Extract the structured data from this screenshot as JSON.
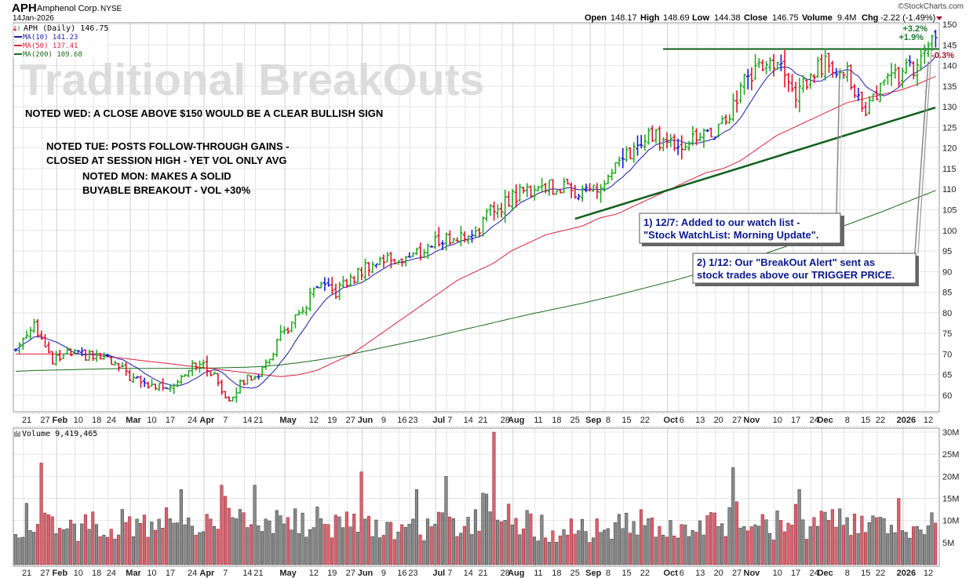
{
  "header": {
    "symbol": "APH",
    "company": "Amphenol Corp.",
    "exchange": "NYSE",
    "date": "14Jan-2026",
    "brand": "©StockCharts.com",
    "open_label": "Open",
    "open": "148.17",
    "high_label": "High",
    "high": "148.69",
    "low_label": "Low",
    "low": "144.38",
    "close_label": "Close",
    "close": "146.75",
    "volume_label": "Volume",
    "volume": "9.4M",
    "chg_label": "Chg",
    "chg": "-2.22 (-1.49%)"
  },
  "legend": {
    "price": "APH (Daily) 146.75",
    "ma10": "MA(10) 141.23",
    "ma50": "MA(50) 137.41",
    "ma200": "MA(200) 109.68",
    "volume": "Volume 9,419,465"
  },
  "watermark": "Traditional BreakOuts",
  "notes": {
    "wed": "NOTED WED: A CLOSE ABOVE $150 WOULD BE A CLEAR BULLISH SIGN",
    "tue_1": "NOTED TUE: POSTS FOLLOW-THROUGH GAINS -",
    "tue_2": "CLOSED AT SESSION HIGH - YET VOL ONLY AVG",
    "mon_1": "NOTED MON: MAKES A SOLID",
    "mon_2": "BUYABLE BREAKOUT - VOL +30%"
  },
  "annotations": {
    "a1_line1": "1) 12/7: Added to our watch list -",
    "a1_line2": "\"Stock WatchList: Morning Update\".",
    "a2_line1": "2) 1/12: Our \"BreakOut Alert\" sent as",
    "a2_line2": "stock trades above our TRIGGER PRICE.",
    "pct_1": "+3.2%",
    "pct_2": "+1.9%",
    "pct_3": "-0.3%"
  },
  "colors": {
    "up": "#22aa22",
    "down": "#e0102e",
    "neutral": "#1a1adf",
    "ma10": "#1c1ca8",
    "ma50": "#d8213a",
    "ma200": "#1b6b1b",
    "trend": "#0f5f1a",
    "vol_up": "#8a8a8a",
    "vol_down": "#d9636f"
  },
  "chart_data": {
    "type": "line",
    "title": "APH Amphenol Corp. NYSE (Daily)",
    "total_days": 251,
    "ylim": [
      56,
      151
    ],
    "y_ticks": [
      60,
      65,
      70,
      75,
      80,
      85,
      90,
      95,
      100,
      105,
      110,
      115,
      120,
      125,
      130,
      135,
      140,
      145,
      150
    ],
    "weekly_close": [
      71,
      78,
      68,
      70,
      69.5,
      69,
      66,
      63,
      62,
      63,
      68,
      66,
      59,
      64,
      66,
      75,
      79,
      86,
      85,
      88,
      92,
      93,
      93,
      95,
      98,
      98,
      100,
      105,
      108,
      110,
      111,
      110,
      110,
      110,
      115,
      120,
      123,
      121,
      122,
      123,
      125,
      135,
      140,
      141,
      132,
      138,
      141,
      139,
      127,
      137,
      138,
      139,
      146.75
    ],
    "ma50_weekly": [
      70,
      70,
      70,
      70,
      70,
      69.5,
      69,
      68.5,
      68,
      67.5,
      67,
      66.5,
      66,
      65.5,
      65,
      64.5,
      65,
      66,
      68,
      70,
      73,
      76,
      79,
      82,
      85,
      88,
      90,
      92,
      95,
      97,
      99,
      100,
      101,
      103,
      104,
      106,
      108,
      110,
      112,
      114,
      115,
      117,
      120,
      123,
      125,
      127,
      129,
      131,
      132,
      133,
      134,
      135.5,
      137.41
    ],
    "ma200_weekly": [
      65.8,
      66,
      66.1,
      66.2,
      66.3,
      66.4,
      66.5,
      66.5,
      66.5,
      66.5,
      66.5,
      66.6,
      66.7,
      66.8,
      67,
      67.4,
      67.9,
      68.5,
      69.2,
      70,
      70.9,
      71.8,
      72.7,
      73.6,
      74.6,
      75.6,
      76.6,
      77.6,
      78.6,
      79.6,
      80.5,
      81.4,
      82.3,
      83.3,
      84.3,
      85.4,
      86.5,
      87.6,
      88.8,
      90,
      91.3,
      92.6,
      93.9,
      95.3,
      96.8,
      98.3,
      99.8,
      101.4,
      103,
      104.6,
      106.3,
      108,
      109.68
    ],
    "vol_ylim": [
      0,
      31
    ],
    "vol_ticks": [
      {
        "v": 5,
        "label": "5M"
      },
      {
        "v": 10,
        "label": "10M"
      },
      {
        "v": 15,
        "label": "15M"
      },
      {
        "v": 20,
        "label": "20M"
      },
      {
        "v": 25,
        "label": "25M"
      },
      {
        "v": 30,
        "label": "30M"
      }
    ],
    "vol_weekly_avg_m": [
      9,
      11,
      8,
      8,
      9,
      8,
      9,
      10,
      9,
      10,
      11,
      9,
      13,
      10,
      9,
      10,
      9,
      10,
      8,
      9,
      8,
      8,
      9,
      8,
      9,
      8,
      10,
      14,
      10,
      9,
      8,
      8,
      8,
      8,
      9,
      9,
      10,
      9,
      9,
      8,
      10,
      11,
      10,
      9,
      10,
      9,
      9,
      10,
      11,
      9,
      8,
      9,
      10
    ],
    "vol_spikes": [
      {
        "day": 7,
        "v": 23
      },
      {
        "day": 45,
        "v": 17
      },
      {
        "day": 56,
        "v": 18
      },
      {
        "day": 65,
        "v": 18
      },
      {
        "day": 94,
        "v": 21
      },
      {
        "day": 109,
        "v": 17
      },
      {
        "day": 117,
        "v": 20
      },
      {
        "day": 130,
        "v": 30
      },
      {
        "day": 195,
        "v": 22
      },
      {
        "day": 213,
        "v": 17
      },
      {
        "day": 240,
        "v": 15
      }
    ],
    "resistance": {
      "value": 144,
      "from_day": 177
    },
    "trendline": {
      "from_day": 152,
      "from_value": 102.8,
      "to_day": 250,
      "to_value": 129.8
    },
    "x_ticks": [
      {
        "label": "21",
        "day": 3
      },
      {
        "label": "27",
        "day": 8
      },
      {
        "label": "Feb",
        "day": 12,
        "bold": true
      },
      {
        "label": "10",
        "day": 17
      },
      {
        "label": "18",
        "day": 22
      },
      {
        "label": "24",
        "day": 26
      },
      {
        "label": "Mar",
        "day": 32,
        "bold": true
      },
      {
        "label": "10",
        "day": 37
      },
      {
        "label": "17",
        "day": 42
      },
      {
        "label": "24",
        "day": 48
      },
      {
        "label": "Apr",
        "day": 52,
        "bold": true
      },
      {
        "label": "7",
        "day": 57
      },
      {
        "label": "14",
        "day": 63
      },
      {
        "label": "21",
        "day": 66
      },
      {
        "label": "May",
        "day": 74,
        "bold": true
      },
      {
        "label": "12",
        "day": 81
      },
      {
        "label": "19",
        "day": 86
      },
      {
        "label": "27",
        "day": 91
      },
      {
        "label": "Jun",
        "day": 95,
        "bold": true
      },
      {
        "label": "9",
        "day": 100
      },
      {
        "label": "16",
        "day": 105
      },
      {
        "label": "23",
        "day": 108
      },
      {
        "label": "Jul",
        "day": 115,
        "bold": true
      },
      {
        "label": "7",
        "day": 118
      },
      {
        "label": "14",
        "day": 123
      },
      {
        "label": "21",
        "day": 127
      },
      {
        "label": "28",
        "day": 133
      },
      {
        "label": "Aug",
        "day": 136,
        "bold": true
      },
      {
        "label": "11",
        "day": 142
      },
      {
        "label": "18",
        "day": 147
      },
      {
        "label": "25",
        "day": 152
      },
      {
        "label": "Sep",
        "day": 157,
        "bold": true
      },
      {
        "label": "8",
        "day": 161
      },
      {
        "label": "15",
        "day": 166
      },
      {
        "label": "22",
        "day": 171
      },
      {
        "label": "Oct",
        "day": 178,
        "bold": true
      },
      {
        "label": "6",
        "day": 181
      },
      {
        "label": "13",
        "day": 186
      },
      {
        "label": "20",
        "day": 191
      },
      {
        "label": "27",
        "day": 196
      },
      {
        "label": "Nov",
        "day": 200,
        "bold": true
      },
      {
        "label": "10",
        "day": 207
      },
      {
        "label": "17",
        "day": 212
      },
      {
        "label": "24",
        "day": 217
      },
      {
        "label": "Dec",
        "day": 220,
        "bold": true
      },
      {
        "label": "8",
        "day": 226
      },
      {
        "label": "15",
        "day": 231
      },
      {
        "label": "22",
        "day": 235
      },
      {
        "label": "2026",
        "day": 242,
        "bold": true
      },
      {
        "label": "12",
        "day": 248
      }
    ]
  }
}
